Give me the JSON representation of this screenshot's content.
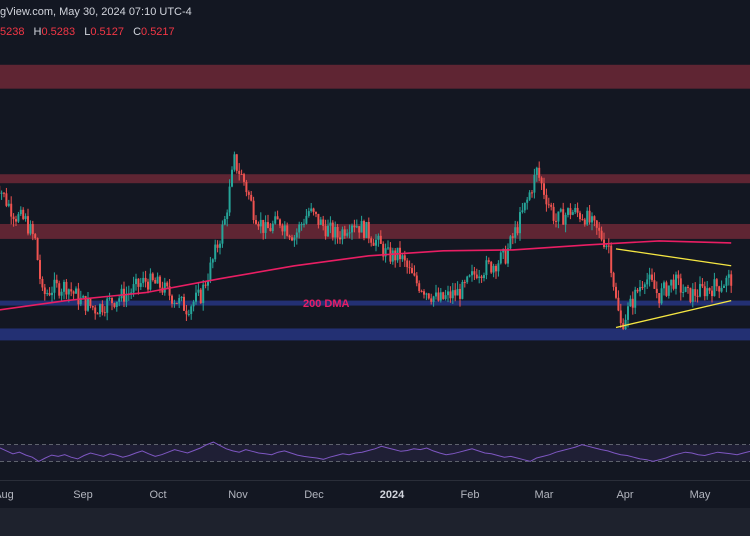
{
  "header": {
    "source_text": "gView.com, May 30, 2024 07:10 UTC-4",
    "ohlc": [
      {
        "key": "",
        "value": "5238"
      },
      {
        "key": "H",
        "value": "0.5283"
      },
      {
        "key": "L",
        "value": "0.5127"
      },
      {
        "key": "C",
        "value": "0.5217"
      }
    ]
  },
  "colors": {
    "background": "#131722",
    "bull_candle": "#26a69a",
    "bear_candle": "#ef5350",
    "resistance_zone": "#7a2b3a",
    "support_zone": "#2a3a8f",
    "dma_line": "#e91e63",
    "triangle": "#f5e642",
    "rsi_line": "#7e57c2"
  },
  "annotations": {
    "dma_label": "200 DMA"
  },
  "chart_data": [
    {
      "type": "candlestick",
      "title": "",
      "x_axis_labels": [
        "Aug",
        "Sep",
        "Oct",
        "Nov",
        "Dec",
        "2024",
        "Feb",
        "Mar",
        "Apr",
        "May"
      ],
      "x_axis_bold": [
        "2024"
      ],
      "y_range": [
        0.38,
        0.78
      ],
      "zones": [
        {
          "kind": "resistance",
          "from": 0.713,
          "to": 0.737
        },
        {
          "kind": "resistance",
          "from": 0.618,
          "to": 0.627
        },
        {
          "kind": "resistance",
          "from": 0.562,
          "to": 0.577
        },
        {
          "kind": "support",
          "from": 0.495,
          "to": 0.5
        },
        {
          "kind": "support",
          "from": 0.46,
          "to": 0.472
        }
      ],
      "close_path": [
        {
          "x": "Jul 28",
          "y": 0.625
        },
        {
          "x": "Aug 2",
          "y": 0.6
        },
        {
          "x": "Aug 6",
          "y": 0.585
        },
        {
          "x": "Aug 10",
          "y": 0.58
        },
        {
          "x": "Aug 14",
          "y": 0.56
        },
        {
          "x": "Aug 17",
          "y": 0.505
        },
        {
          "x": "Aug 21",
          "y": 0.512
        },
        {
          "x": "Aug 27",
          "y": 0.515
        },
        {
          "x": "Sep 2",
          "y": 0.5
        },
        {
          "x": "Sep 8",
          "y": 0.492
        },
        {
          "x": "Sep 15",
          "y": 0.5
        },
        {
          "x": "Sep 22",
          "y": 0.508
        },
        {
          "x": "Sep 29",
          "y": 0.52
        },
        {
          "x": "Oct 5",
          "y": 0.515
        },
        {
          "x": "Oct 12",
          "y": 0.5
        },
        {
          "x": "Oct 16",
          "y": 0.493
        },
        {
          "x": "Oct 22",
          "y": 0.505
        },
        {
          "x": "Oct 27",
          "y": 0.54
        },
        {
          "x": "Nov 1",
          "y": 0.58
        },
        {
          "x": "Nov 5",
          "y": 0.64
        },
        {
          "x": "Nov 9",
          "y": 0.62
        },
        {
          "x": "Nov 13",
          "y": 0.59
        },
        {
          "x": "Nov 18",
          "y": 0.57
        },
        {
          "x": "Nov 24",
          "y": 0.58
        },
        {
          "x": "Nov 30",
          "y": 0.565
        },
        {
          "x": "Dec 6",
          "y": 0.59
        },
        {
          "x": "Dec 12",
          "y": 0.575
        },
        {
          "x": "Dec 18",
          "y": 0.565
        },
        {
          "x": "Dec 24",
          "y": 0.58
        },
        {
          "x": "Dec 30",
          "y": 0.57
        },
        {
          "x": "Jan 3",
          "y": 0.56
        },
        {
          "x": "Jan 8",
          "y": 0.545
        },
        {
          "x": "Jan 13",
          "y": 0.545
        },
        {
          "x": "Jan 19",
          "y": 0.52
        },
        {
          "x": "Jan 24",
          "y": 0.51
        },
        {
          "x": "Jan 29",
          "y": 0.5
        },
        {
          "x": "Feb 3",
          "y": 0.505
        },
        {
          "x": "Feb 8",
          "y": 0.51
        },
        {
          "x": "Feb 14",
          "y": 0.53
        },
        {
          "x": "Feb 20",
          "y": 0.535
        },
        {
          "x": "Feb 26",
          "y": 0.545
        },
        {
          "x": "Mar 2",
          "y": 0.575
        },
        {
          "x": "Mar 6",
          "y": 0.6
        },
        {
          "x": "Mar 10",
          "y": 0.63
        },
        {
          "x": "Mar 13",
          "y": 0.61
        },
        {
          "x": "Mar 18",
          "y": 0.58
        },
        {
          "x": "Mar 24",
          "y": 0.59
        },
        {
          "x": "Mar 30",
          "y": 0.585
        },
        {
          "x": "Apr 4",
          "y": 0.57
        },
        {
          "x": "Apr 9",
          "y": 0.555
        },
        {
          "x": "Apr 12",
          "y": 0.5
        },
        {
          "x": "Apr 14",
          "y": 0.475
        },
        {
          "x": "Apr 18",
          "y": 0.495
        },
        {
          "x": "Apr 24",
          "y": 0.525
        },
        {
          "x": "Apr 30",
          "y": 0.505
        },
        {
          "x": "May 6",
          "y": 0.52
        },
        {
          "x": "May 12",
          "y": 0.505
        },
        {
          "x": "May 18",
          "y": 0.51
        },
        {
          "x": "May 24",
          "y": 0.515
        },
        {
          "x": "May 30",
          "y": 0.522
        }
      ],
      "dma_200": [
        {
          "x": "Jul 28",
          "y": 0.49
        },
        {
          "x": "Aug 27",
          "y": 0.5
        },
        {
          "x": "Sep 29",
          "y": 0.508
        },
        {
          "x": "Oct 30",
          "y": 0.522
        },
        {
          "x": "Nov 30",
          "y": 0.535
        },
        {
          "x": "Dec 31",
          "y": 0.545
        },
        {
          "x": "Jan 31",
          "y": 0.55
        },
        {
          "x": "Feb 29",
          "y": 0.551
        },
        {
          "x": "Mar 31",
          "y": 0.556
        },
        {
          "x": "Apr 30",
          "y": 0.56
        },
        {
          "x": "May 30",
          "y": 0.558
        }
      ],
      "triangle": {
        "upper": [
          {
            "x": "Apr 12",
            "y": 0.552
          },
          {
            "x": "May 30",
            "y": 0.535
          }
        ],
        "lower": [
          {
            "x": "Apr 12",
            "y": 0.473
          },
          {
            "x": "May 30",
            "y": 0.5
          }
        ]
      }
    },
    {
      "type": "line",
      "title": "",
      "y_range": [
        0,
        100
      ],
      "bands": [
        70,
        30
      ],
      "values": [
        62,
        55,
        48,
        52,
        45,
        40,
        30,
        38,
        45,
        42,
        46,
        40,
        36,
        44,
        50,
        46,
        42,
        48,
        45,
        40,
        44,
        50,
        55,
        48,
        42,
        46,
        52,
        58,
        54,
        50,
        56,
        62,
        70,
        76,
        68,
        60,
        55,
        52,
        58,
        54,
        50,
        48,
        46,
        52,
        55,
        50,
        45,
        42,
        40,
        38,
        35,
        40,
        44,
        48,
        46,
        50,
        52,
        56,
        60,
        66,
        62,
        58,
        54,
        56,
        60,
        58,
        62,
        55,
        50,
        46,
        48,
        52,
        56,
        60,
        55,
        50,
        48,
        44,
        40,
        42,
        38,
        34,
        30,
        38,
        42,
        46,
        52,
        56,
        60,
        64,
        70,
        66,
        62,
        58,
        55,
        50,
        46,
        44,
        40,
        36,
        34,
        30,
        34,
        38,
        44,
        48,
        52,
        50,
        46,
        44,
        48,
        52,
        50,
        48,
        46,
        50,
        54
      ]
    }
  ]
}
